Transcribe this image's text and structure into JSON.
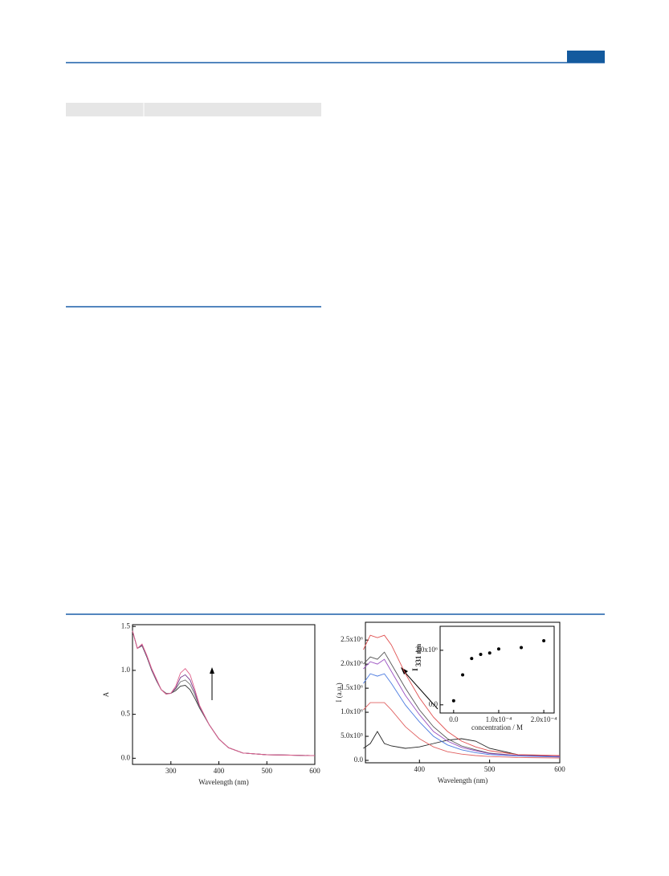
{
  "chart_data": [
    {
      "type": "line",
      "xlabel": "Wavelength (nm)",
      "ylabel": "A",
      "x": [
        220,
        230,
        240,
        250,
        260,
        270,
        280,
        290,
        300,
        310,
        320,
        330,
        340,
        350,
        360,
        380,
        400,
        420,
        450,
        500,
        550,
        600
      ],
      "series": [
        {
          "color": "#333333",
          "values": [
            1.45,
            1.25,
            1.28,
            1.15,
            1.0,
            0.88,
            0.78,
            0.74,
            0.74,
            0.77,
            0.82,
            0.83,
            0.78,
            0.68,
            0.57,
            0.38,
            0.22,
            0.12,
            0.06,
            0.04,
            0.035,
            0.03
          ]
        },
        {
          "color": "#777777",
          "values": [
            1.45,
            1.25,
            1.28,
            1.16,
            1.0,
            0.88,
            0.78,
            0.74,
            0.74,
            0.79,
            0.87,
            0.89,
            0.84,
            0.72,
            0.58,
            0.38,
            0.22,
            0.12,
            0.06,
            0.04,
            0.035,
            0.03
          ]
        },
        {
          "color": "#7a3d8f",
          "values": [
            1.45,
            1.25,
            1.29,
            1.16,
            1.01,
            0.89,
            0.78,
            0.73,
            0.74,
            0.8,
            0.92,
            0.95,
            0.89,
            0.75,
            0.59,
            0.38,
            0.22,
            0.12,
            0.06,
            0.04,
            0.035,
            0.03
          ]
        },
        {
          "color": "#e0608a",
          "values": [
            1.45,
            1.25,
            1.3,
            1.17,
            1.02,
            0.9,
            0.78,
            0.73,
            0.74,
            0.82,
            0.97,
            1.02,
            0.95,
            0.78,
            0.6,
            0.38,
            0.22,
            0.12,
            0.06,
            0.04,
            0.035,
            0.03
          ]
        }
      ],
      "xlim": [
        220,
        600
      ],
      "xticks": [
        300,
        400,
        500,
        600
      ],
      "ylim": [
        -0.07,
        1.52
      ],
      "yticks": [
        {
          "value": 0,
          "label": "0.0"
        },
        {
          "value": 0.5,
          "label": "0.5"
        },
        {
          "value": 1,
          "label": "1.0"
        },
        {
          "value": 1.5,
          "label": "1.5"
        }
      ]
    },
    {
      "type": "line",
      "xlabel": "Wavelength (nm)",
      "ylabel": "I (a.u.)",
      "x": [
        320,
        330,
        340,
        350,
        360,
        380,
        400,
        420,
        440,
        460,
        480,
        500,
        540,
        600
      ],
      "series": [
        {
          "color": "#222222",
          "values": [
            250000,
            350000,
            600000,
            350000,
            300000,
            250000,
            280000,
            350000,
            420000,
            450000,
            400000,
            250000,
            120000,
            80000
          ]
        },
        {
          "color": "#e05050",
          "values": [
            2300000,
            2600000,
            2550000,
            2600000,
            2400000,
            1800000,
            1300000,
            900000,
            600000,
            400000,
            280000,
            200000,
            120000,
            100000
          ]
        },
        {
          "color": "#555555",
          "values": [
            2000000,
            2150000,
            2100000,
            2250000,
            2000000,
            1500000,
            1050000,
            700000,
            450000,
            300000,
            220000,
            150000,
            100000,
            80000
          ]
        },
        {
          "color": "#9a50c0",
          "values": [
            1900000,
            2050000,
            2000000,
            2100000,
            1850000,
            1350000,
            950000,
            600000,
            400000,
            270000,
            200000,
            140000,
            100000,
            80000
          ]
        },
        {
          "color": "#4a7ae0",
          "values": [
            1600000,
            1800000,
            1750000,
            1800000,
            1600000,
            1150000,
            800000,
            500000,
            320000,
            220000,
            160000,
            120000,
            90000,
            70000
          ]
        },
        {
          "color": "#e06060",
          "values": [
            1050000,
            1200000,
            1200000,
            1200000,
            1050000,
            700000,
            450000,
            280000,
            180000,
            130000,
            100000,
            80000,
            60000,
            50000
          ]
        }
      ],
      "xlim": [
        323,
        600
      ],
      "xticks": [
        400,
        500,
        600
      ],
      "ylim": [
        -50000,
        2870000
      ],
      "yticks": [
        {
          "value": 0,
          "label": "0.0"
        },
        {
          "value": 500000,
          "label": "5.0x10⁵"
        },
        {
          "value": 1000000,
          "label": "1.0x10⁶"
        },
        {
          "value": 1500000,
          "label": "1.5x10⁶"
        },
        {
          "value": 2000000,
          "label": "2.0x10⁶"
        },
        {
          "value": 2500000,
          "label": "2.5x10⁶"
        }
      ]
    },
    {
      "type": "scatter",
      "xlabel": "concentration / M",
      "ylabel": "I",
      "ylabel_sub": "331 nm",
      "color": "#000000",
      "x": [
        0,
        2e-05,
        4e-05,
        6e-05,
        8e-05,
        0.0001,
        0.00015,
        0.0002
      ],
      "values": [
        150000,
        1100000,
        1700000,
        1850000,
        1900000,
        2050000,
        2100000,
        2350000
      ],
      "xlim": [
        -3e-05,
        0.000223
      ],
      "xticks": [
        {
          "value": 0,
          "label": "0.0"
        },
        {
          "value": 0.0001,
          "label": "1.0x10⁻⁴"
        },
        {
          "value": 0.0002,
          "label": "2.0x10⁻⁴"
        }
      ],
      "ylim": [
        -300000,
        2880000
      ],
      "yticks": [
        {
          "value": 0,
          "label": "0.0"
        },
        {
          "value": 2000000,
          "label": "2.0x10⁶"
        }
      ]
    }
  ]
}
